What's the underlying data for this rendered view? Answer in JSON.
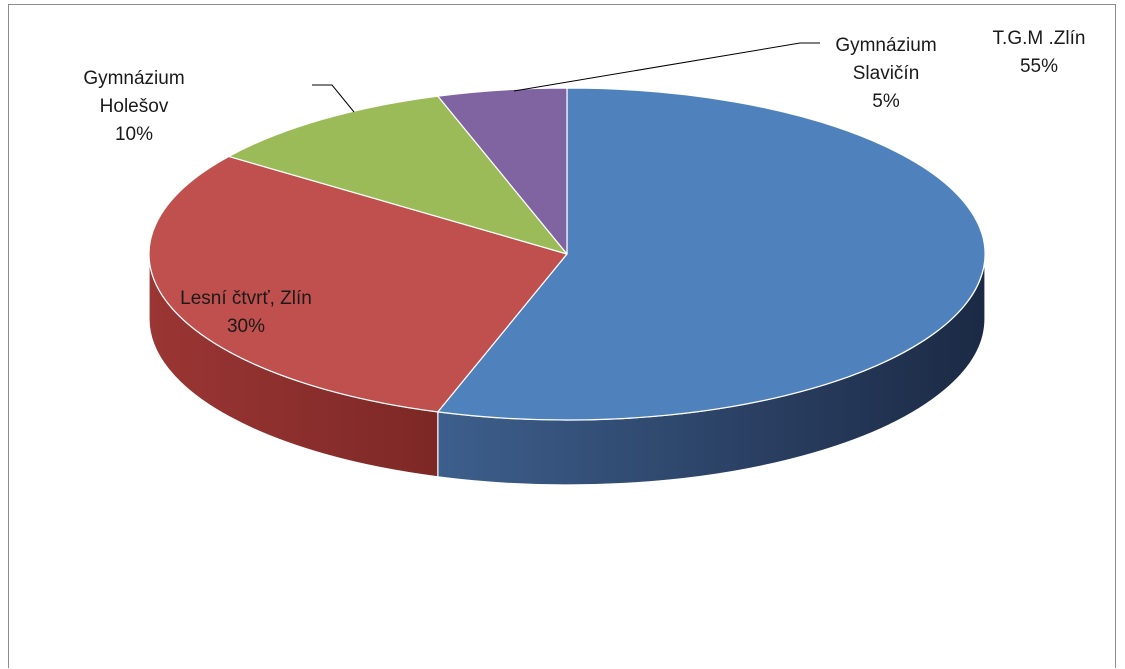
{
  "chart_data": {
    "type": "pie",
    "style": "3d",
    "slices": [
      {
        "name": "T.G.M .Zlín",
        "value": 55,
        "label": "55%",
        "color": "#4f81bd"
      },
      {
        "name": "Lesní čtvrť, Zlín",
        "value": 30,
        "label": "30%",
        "color": "#c0504d"
      },
      {
        "name": "Gymnázium Holešov",
        "value": 10,
        "label": "10%",
        "color": "#9bbb59"
      },
      {
        "name": "Gymnázium Slavičín",
        "value": 5,
        "label": "5%",
        "color": "#8064a2"
      }
    ],
    "label_lines": [
      [
        "T.G.M .Zlín",
        "55%"
      ],
      [
        "Lesní čtvrť, Zlín",
        "30%"
      ],
      [
        "Gymnázium",
        "Holešov",
        "10%"
      ],
      [
        "Gymnázium",
        "Slavičín",
        "5%"
      ]
    ],
    "legend": "none"
  }
}
